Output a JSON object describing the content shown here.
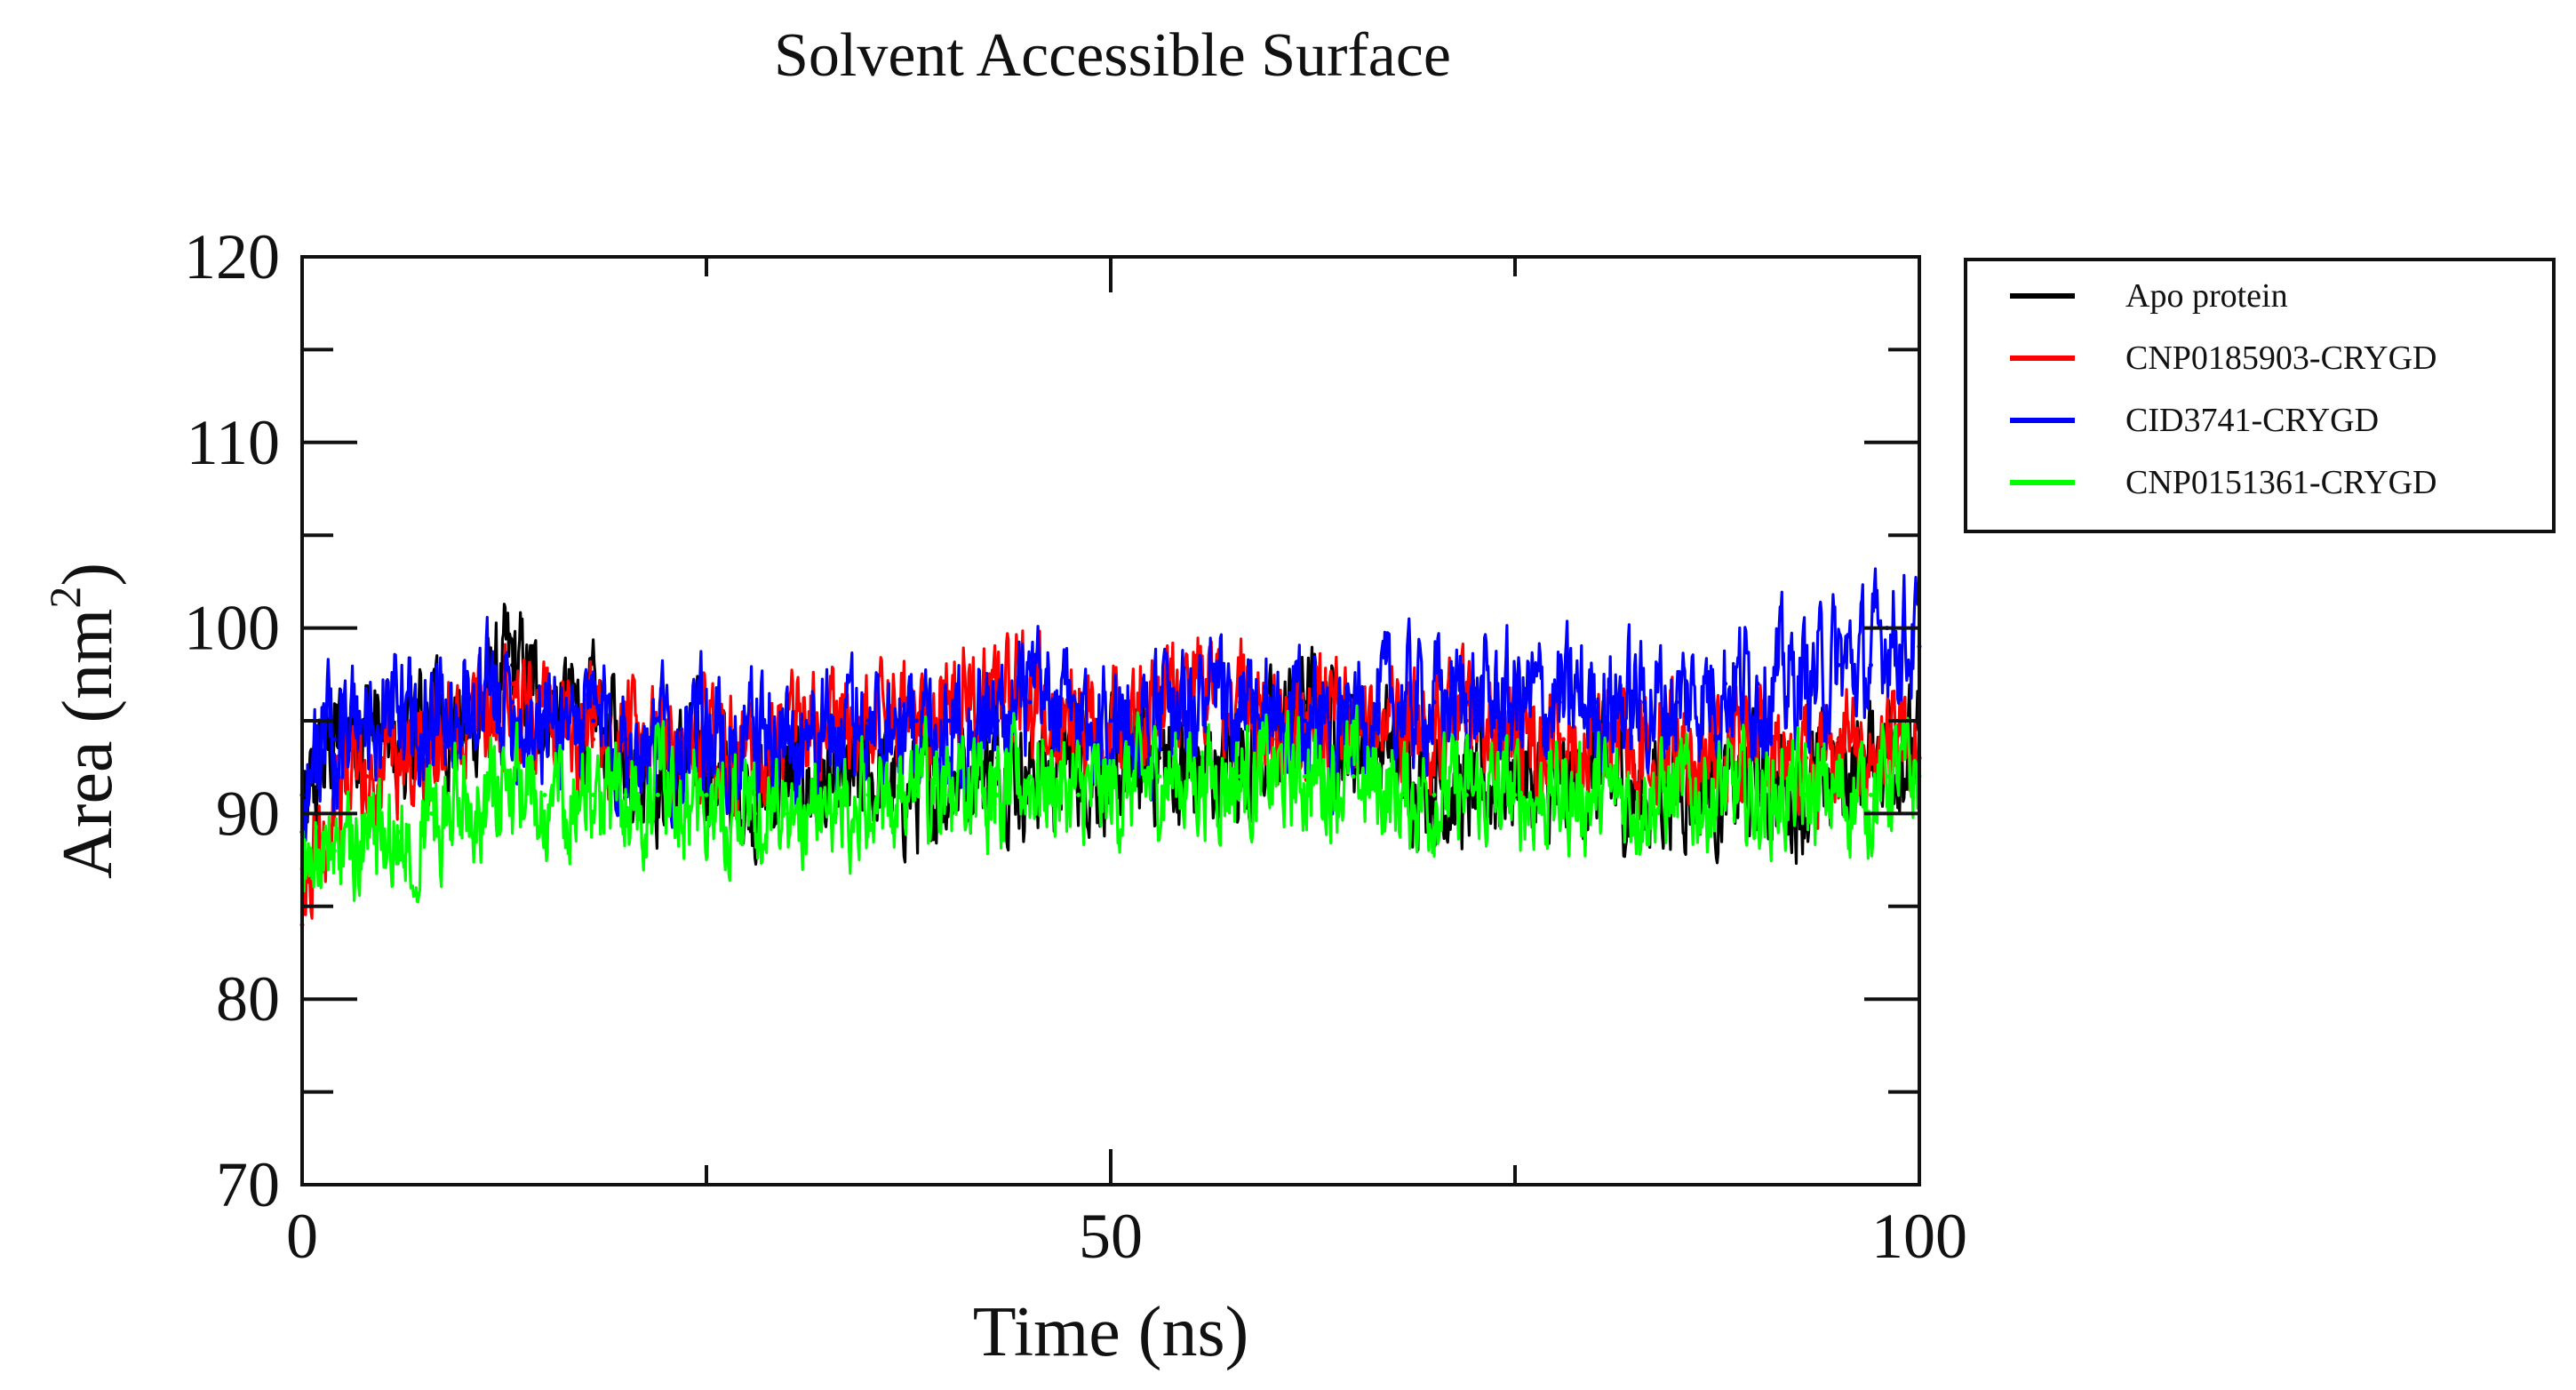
{
  "chart_data": {
    "type": "line",
    "title": "Solvent Accessible Surface",
    "xlabel": "Time (ns)",
    "ylabel": "Area (nm",
    "ylabel_superscript": "2",
    "ylabel_suffix": ")",
    "xlim": [
      0,
      100
    ],
    "ylim": [
      70,
      120
    ],
    "x_ticks": [
      {
        "value": 0,
        "label": "0"
      },
      {
        "value": 50,
        "label": "50"
      },
      {
        "value": 100,
        "label": "100"
      }
    ],
    "y_ticks": [
      {
        "value": 70,
        "label": "70"
      },
      {
        "value": 80,
        "label": "80"
      },
      {
        "value": 90,
        "label": "90"
      },
      {
        "value": 100,
        "label": "100"
      },
      {
        "value": 110,
        "label": "110"
      },
      {
        "value": 120,
        "label": "120"
      }
    ],
    "grid": false,
    "legend_position": "outside-top-right",
    "series": [
      {
        "name": "Apo protein",
        "color": "#000000",
        "x": [
          0,
          1,
          2,
          4,
          6,
          8,
          10,
          12,
          13,
          15,
          18,
          20,
          22,
          25,
          28,
          30,
          33,
          35,
          38,
          40,
          43,
          45,
          48,
          50,
          53,
          55,
          58,
          60,
          62,
          65,
          68,
          70,
          72,
          75,
          78,
          80,
          83,
          85,
          88,
          90,
          93,
          95,
          97,
          98,
          100
        ],
        "y": [
          89,
          92,
          94,
          95,
          93,
          96,
          94,
          97,
          98,
          96,
          95,
          94,
          92,
          93,
          91,
          92,
          91,
          92,
          91,
          92,
          93,
          92,
          93,
          92,
          93,
          92,
          93,
          94,
          96,
          94,
          93,
          92,
          91,
          92,
          91,
          92,
          91,
          92,
          91,
          92,
          91,
          92,
          93,
          94,
          93
        ]
      },
      {
        "name": "CNP0185903-CRYGD",
        "color": "#ff0000",
        "x": [
          0,
          1,
          2,
          4,
          6,
          8,
          10,
          12,
          13,
          15,
          18,
          20,
          22,
          25,
          28,
          30,
          33,
          35,
          38,
          40,
          43,
          45,
          48,
          50,
          53,
          55,
          58,
          60,
          62,
          65,
          68,
          70,
          72,
          75,
          78,
          80,
          83,
          85,
          88,
          90,
          93,
          95,
          97,
          98,
          100
        ],
        "y": [
          84,
          89,
          91,
          92,
          93,
          94,
          95,
          96,
          97,
          95,
          94,
          94,
          93,
          94,
          93,
          94,
          95,
          95,
          95,
          96,
          97,
          96,
          95,
          95,
          96,
          97,
          96,
          95,
          95,
          95,
          95,
          95,
          95,
          94,
          94,
          94,
          94,
          94,
          93,
          94,
          93,
          94,
          93,
          94,
          93
        ]
      },
      {
        "name": "CID3741-CRYGD",
        "color": "#0000ff",
        "x": [
          0,
          1,
          2,
          4,
          6,
          8,
          10,
          12,
          13,
          15,
          18,
          20,
          22,
          25,
          28,
          30,
          33,
          35,
          38,
          40,
          43,
          45,
          48,
          50,
          53,
          55,
          58,
          60,
          62,
          65,
          68,
          70,
          72,
          75,
          78,
          80,
          83,
          85,
          88,
          90,
          93,
          95,
          97,
          98,
          100
        ],
        "y": [
          91,
          93,
          94,
          95,
          95,
          95,
          96,
          96,
          96,
          95,
          95,
          94,
          94,
          94,
          94,
          94,
          94,
          95,
          95,
          95,
          95,
          96,
          95,
          95,
          95,
          96,
          95,
          95,
          95,
          95,
          96,
          96,
          96,
          96,
          96,
          96,
          96,
          96,
          97,
          97,
          97,
          98,
          98,
          100,
          99
        ]
      },
      {
        "name": "CNP0151361-CRYGD",
        "color": "#00ff00",
        "x": [
          0,
          1,
          2,
          4,
          6,
          8,
          10,
          12,
          13,
          15,
          18,
          20,
          22,
          25,
          28,
          30,
          33,
          35,
          38,
          40,
          43,
          45,
          48,
          50,
          53,
          55,
          58,
          60,
          62,
          65,
          68,
          70,
          72,
          75,
          78,
          80,
          83,
          85,
          88,
          90,
          93,
          95,
          97,
          98,
          100
        ],
        "y": [
          87,
          88,
          88,
          89,
          89,
          90,
          91,
          91,
          91,
          91,
          91,
          91,
          91,
          91,
          90,
          90,
          90,
          91,
          91,
          91,
          91,
          92,
          91,
          91,
          92,
          92,
          92,
          92,
          92,
          92,
          91,
          91,
          91,
          91,
          91,
          91,
          91,
          91,
          91,
          91,
          91,
          91,
          91,
          92,
          92
        ]
      }
    ]
  }
}
